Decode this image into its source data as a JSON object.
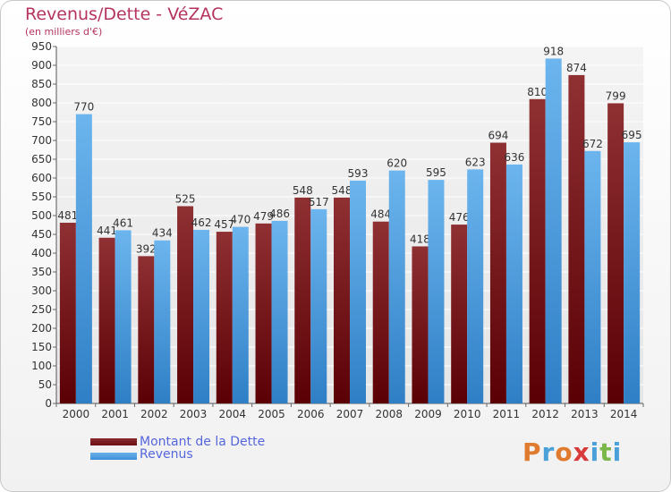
{
  "title": "Revenus/Dette - VéZAC",
  "subtitle": "(en milliers d'€)",
  "logo": {
    "text": "Proxiti",
    "colors": [
      "#e07a2e",
      "#4aa0d8",
      "#e07a2e",
      "#d83a3a",
      "#4aa0d8",
      "#7bb84a",
      "#4aa0d8"
    ]
  },
  "legend": [
    {
      "label": "Montant de la Dette",
      "color": "#6b0f14"
    },
    {
      "label": "Revenus",
      "color": "#3d8fd8"
    }
  ],
  "chart_data": {
    "type": "bar",
    "title": "Revenus/Dette - VéZAC",
    "ylabel": "(en milliers d'€)",
    "xlabel": "",
    "ylim": [
      0,
      950
    ],
    "ytick_step": 50,
    "grid": true,
    "legend_position": "bottom-left",
    "categories": [
      "2000",
      "2001",
      "2002",
      "2003",
      "2004",
      "2005",
      "2006",
      "2007",
      "2008",
      "2009",
      "2010",
      "2011",
      "2012",
      "2013",
      "2014"
    ],
    "series": [
      {
        "name": "Montant de la Dette",
        "color": "#6b0f14",
        "values": [
          481,
          441,
          392,
          525,
          457,
          479,
          548,
          548,
          484,
          418,
          476,
          694,
          810,
          874,
          799
        ]
      },
      {
        "name": "Revenus",
        "color": "#3d8fd8",
        "values": [
          770,
          461,
          434,
          462,
          470,
          486,
          517,
          593,
          620,
          595,
          623,
          636,
          918,
          672,
          695
        ]
      }
    ]
  }
}
